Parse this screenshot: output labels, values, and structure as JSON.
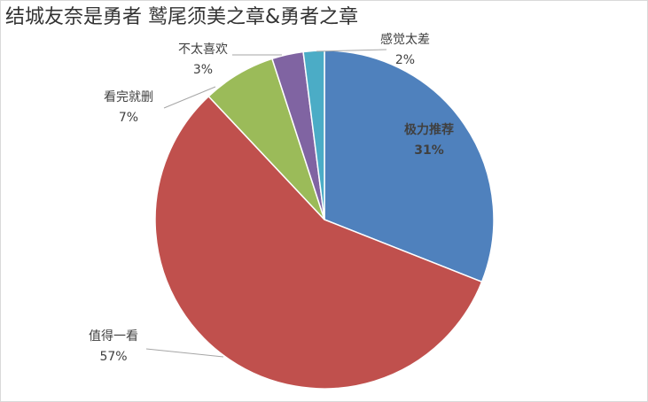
{
  "chart_data": {
    "type": "pie",
    "title": "结城友奈是勇者 鹫尾须美之章&勇者之章",
    "categories": [
      "极力推荐",
      "值得一看",
      "看完就删",
      "不太喜欢",
      "感觉太差"
    ],
    "values": [
      31,
      57,
      7,
      3,
      2
    ],
    "value_labels": [
      "31%",
      "57%",
      "7%",
      "3%",
      "2%"
    ],
    "colors": [
      "#4f81bd",
      "#c0504d",
      "#9bbb59",
      "#8064a2",
      "#4bacc6"
    ]
  }
}
